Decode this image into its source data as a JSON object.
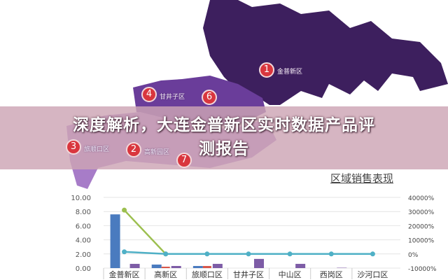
{
  "headline": {
    "line1": "深度解析，大连金普新区实时数据产品评",
    "line2": "测报告"
  },
  "map": {
    "markers": [
      {
        "rank": "1",
        "label": "金普新区"
      },
      {
        "rank": "2",
        "label": "高新园区"
      },
      {
        "rank": "3",
        "label": "旅顺口区"
      },
      {
        "rank": "4",
        "label": "甘井子区"
      },
      {
        "rank": "6",
        "label": ""
      },
      {
        "rank": "7",
        "label": ""
      }
    ],
    "colors": {
      "dark": "#3d1f5e",
      "mid": "#6a3d9a",
      "light": "#a77cc8"
    }
  },
  "chart_data": {
    "type": "bar",
    "title": "区域销售表现",
    "categories": [
      "金普新区",
      "高新区",
      "旅顺口区",
      "甘井子区",
      "中山区",
      "西岗区",
      "沙河口区"
    ],
    "left_axis": {
      "ylim": [
        0,
        10
      ],
      "ticks": [
        "10.00",
        "8.00",
        "6.00",
        "4.00",
        "2.00",
        "0.00"
      ]
    },
    "right_axis": {
      "ylim": [
        -10000,
        40000
      ],
      "ticks": [
        "40000%",
        "30000%",
        "20000%",
        "10000%",
        "0%",
        "-10000%"
      ]
    },
    "series": [
      {
        "type": "bar",
        "axis": "left",
        "color": "#4a7bbf",
        "values": [
          7.6,
          0.5,
          0.3,
          0,
          0,
          0,
          0
        ]
      },
      {
        "type": "bar",
        "axis": "left",
        "color": "#d9574a",
        "values": [
          0,
          0.2,
          0.3,
          0,
          0,
          0,
          0
        ]
      },
      {
        "type": "bar",
        "axis": "left",
        "color": "#7d5ca6",
        "values": [
          0.6,
          0.3,
          0.6,
          1.3,
          0.6,
          0.05,
          0
        ]
      },
      {
        "type": "line",
        "axis": "right",
        "color": "#9cbf4f",
        "values": [
          31000,
          0,
          null,
          null,
          null,
          null,
          null
        ]
      },
      {
        "type": "line",
        "axis": "right",
        "color": "#4fb0c6",
        "values": [
          1500,
          0,
          0,
          0,
          0,
          0,
          0
        ]
      }
    ],
    "grid": true
  }
}
